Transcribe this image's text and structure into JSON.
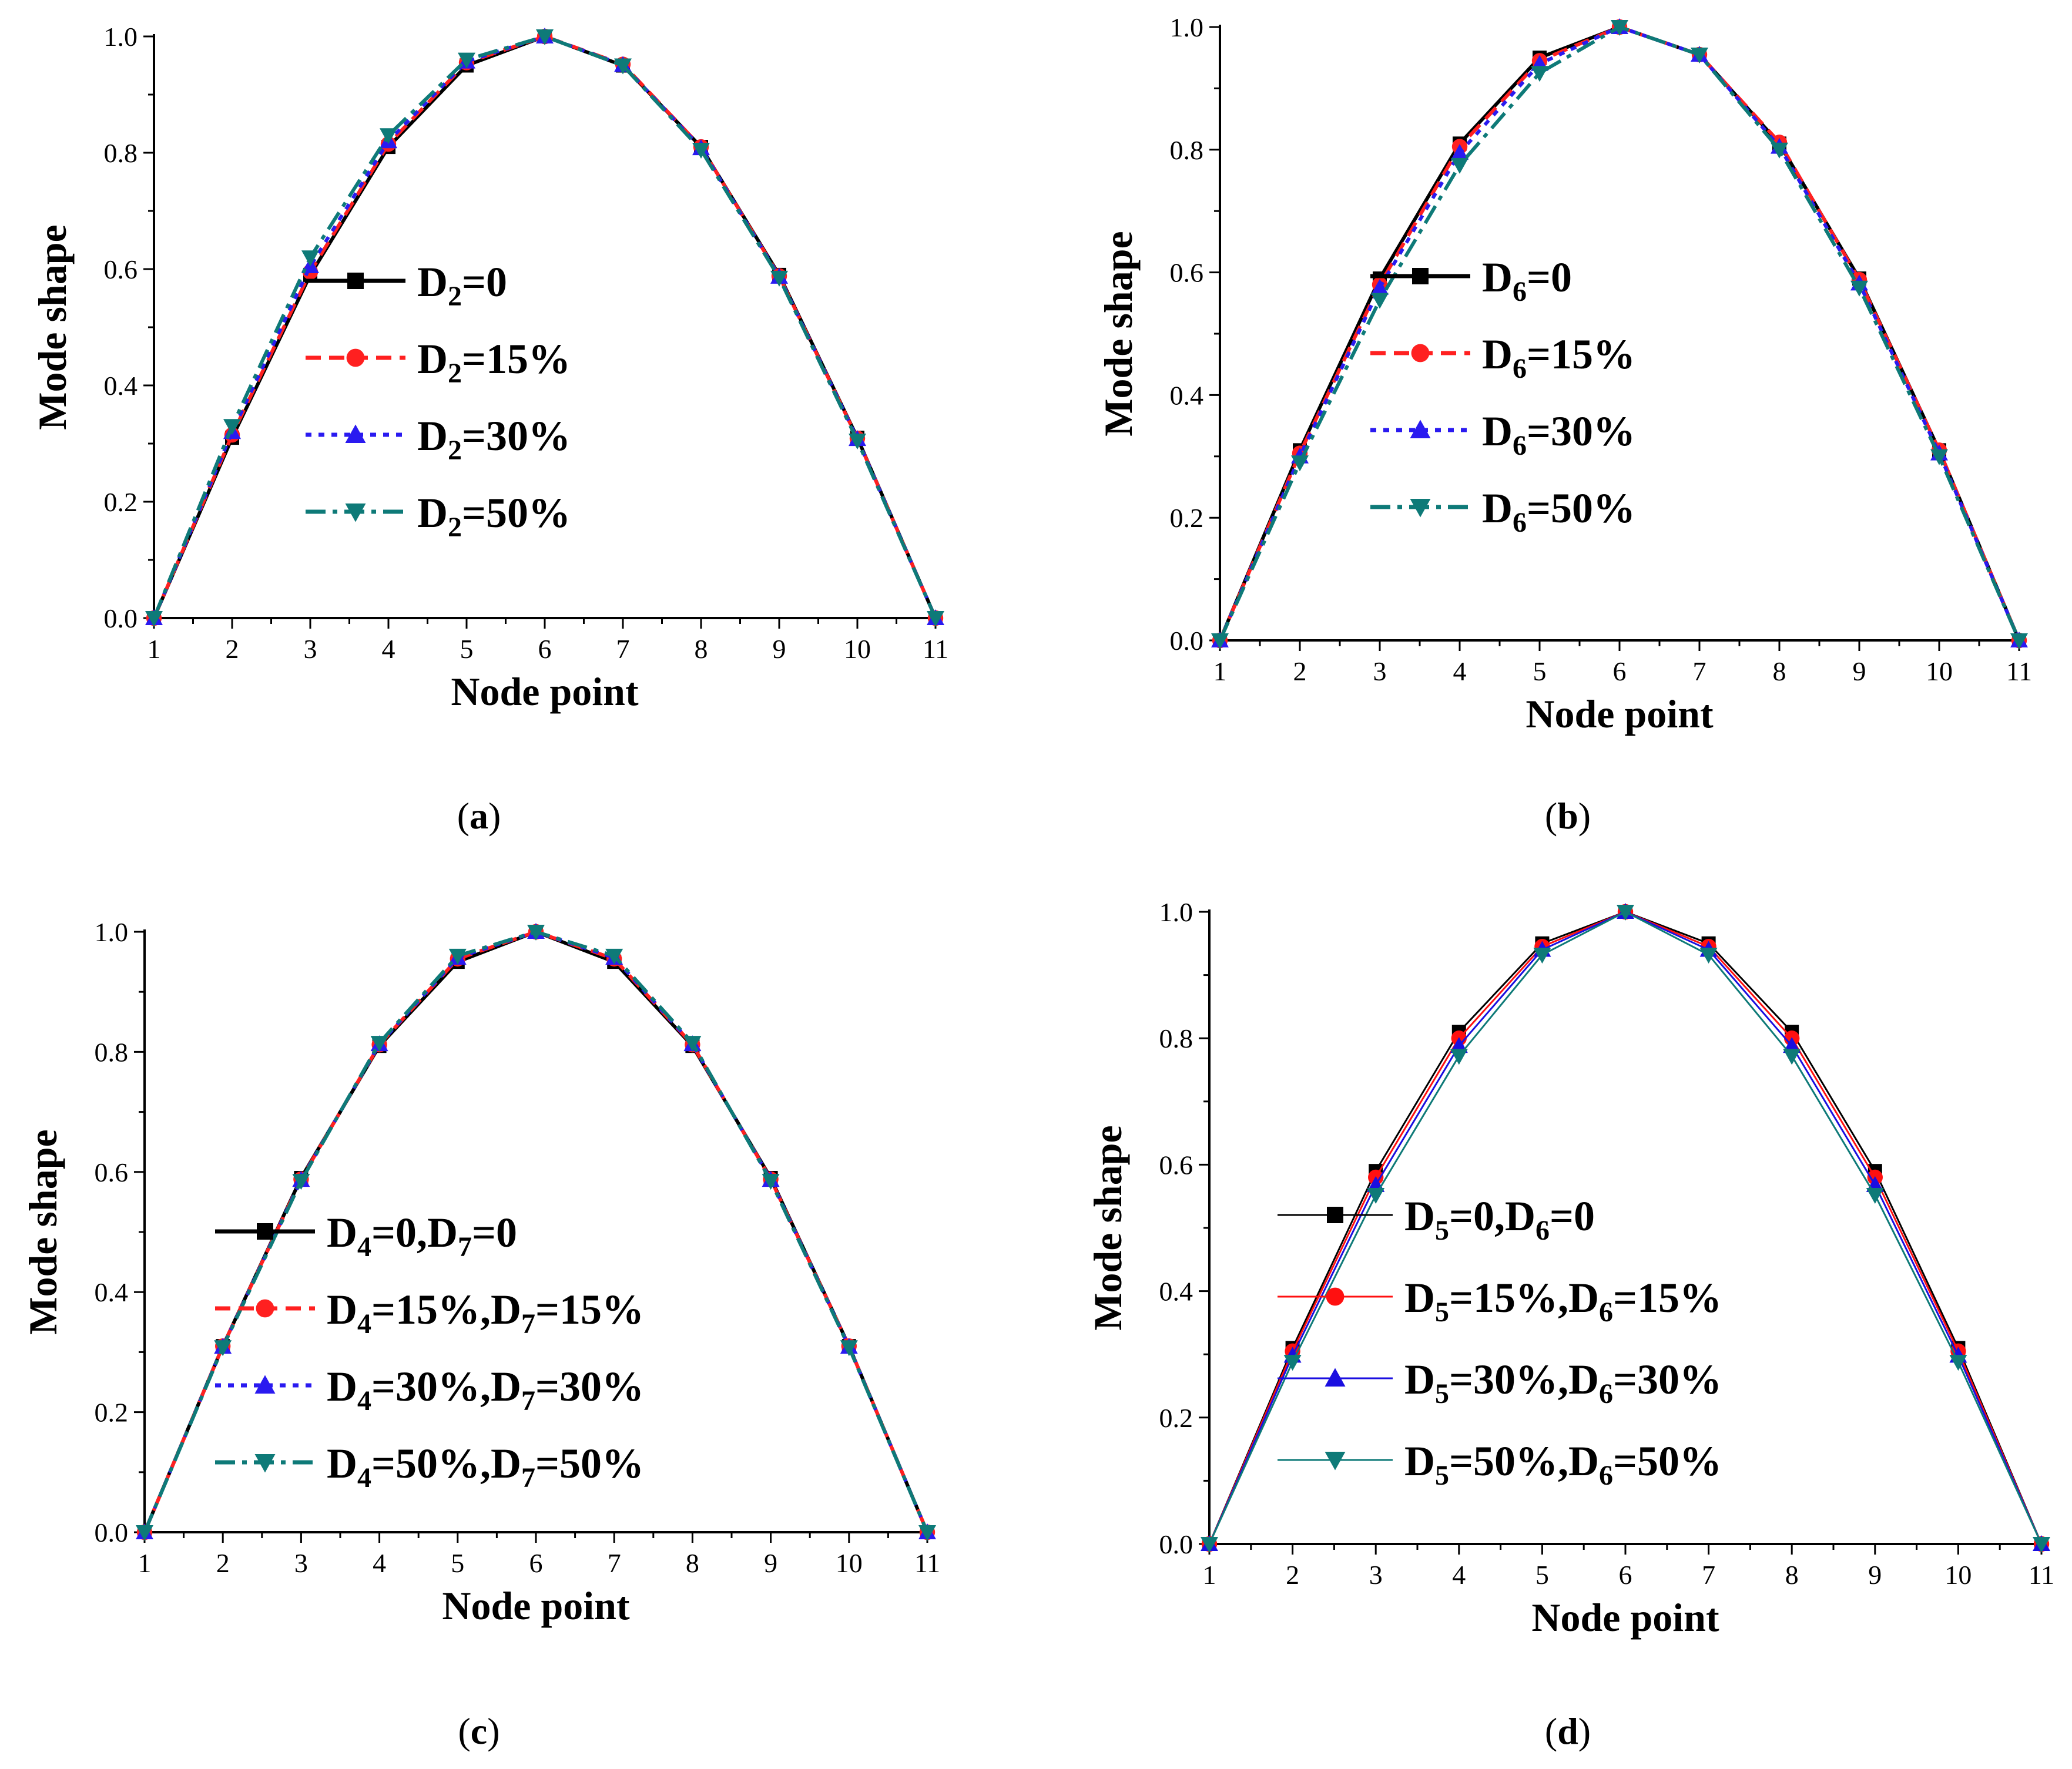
{
  "figure": {
    "panels": [
      {
        "id": "a",
        "caption_letter": "a",
        "legend_style": "dashed",
        "colors": [
          "#000000",
          "#ff2020",
          "#2a1af0",
          "#0e7a78"
        ],
        "legend_labels": [
          [
            {
              "t": "D"
            },
            {
              "t": "2",
              "sub": true
            },
            {
              "t": "=0"
            }
          ],
          [
            {
              "t": "D"
            },
            {
              "t": "2",
              "sub": true
            },
            {
              "t": "=15%"
            }
          ],
          [
            {
              "t": "D"
            },
            {
              "t": "2",
              "sub": true
            },
            {
              "t": "=30%"
            }
          ],
          [
            {
              "t": "D"
            },
            {
              "t": "2",
              "sub": true
            },
            {
              "t": "=50%"
            }
          ]
        ]
      },
      {
        "id": "b",
        "caption_letter": "b",
        "legend_style": "dashed",
        "colors": [
          "#000000",
          "#ff2020",
          "#2a1af0",
          "#0e7a78"
        ],
        "legend_labels": [
          [
            {
              "t": "D"
            },
            {
              "t": "6",
              "sub": true
            },
            {
              "t": "=0"
            }
          ],
          [
            {
              "t": "D"
            },
            {
              "t": "6",
              "sub": true
            },
            {
              "t": "=15%"
            }
          ],
          [
            {
              "t": "D"
            },
            {
              "t": "6",
              "sub": true
            },
            {
              "t": "=30%"
            }
          ],
          [
            {
              "t": "D"
            },
            {
              "t": "6",
              "sub": true
            },
            {
              "t": "=50%"
            }
          ]
        ]
      },
      {
        "id": "c",
        "caption_letter": "c",
        "legend_style": "dashed",
        "colors": [
          "#000000",
          "#ff2020",
          "#2a1af0",
          "#0e7a78"
        ],
        "legend_labels": [
          [
            {
              "t": "D"
            },
            {
              "t": "4",
              "sub": true
            },
            {
              "t": "=0,D"
            },
            {
              "t": "7",
              "sub": true
            },
            {
              "t": "=0"
            }
          ],
          [
            {
              "t": "D"
            },
            {
              "t": "4",
              "sub": true
            },
            {
              "t": "=15%,D"
            },
            {
              "t": "7",
              "sub": true
            },
            {
              "t": "=15%"
            }
          ],
          [
            {
              "t": "D"
            },
            {
              "t": "4",
              "sub": true
            },
            {
              "t": "=30%,D"
            },
            {
              "t": "7",
              "sub": true
            },
            {
              "t": "=30%"
            }
          ],
          [
            {
              "t": "D"
            },
            {
              "t": "4",
              "sub": true
            },
            {
              "t": "=50%,D"
            },
            {
              "t": "7",
              "sub": true
            },
            {
              "t": "=50%"
            }
          ]
        ]
      },
      {
        "id": "d",
        "caption_letter": "d",
        "legend_style": "solid-thin",
        "colors": [
          "#000000",
          "#ff1010",
          "#1a0ee0",
          "#0e7a78"
        ],
        "legend_labels": [
          [
            {
              "t": "D"
            },
            {
              "t": "5",
              "sub": true
            },
            {
              "t": "=0,D"
            },
            {
              "t": "6",
              "sub": true
            },
            {
              "t": "=0"
            }
          ],
          [
            {
              "t": "D"
            },
            {
              "t": "5",
              "sub": true
            },
            {
              "t": "=15%,D"
            },
            {
              "t": "6",
              "sub": true
            },
            {
              "t": "=15%"
            }
          ],
          [
            {
              "t": "D"
            },
            {
              "t": "5",
              "sub": true
            },
            {
              "t": "=30%,D"
            },
            {
              "t": "6",
              "sub": true
            },
            {
              "t": "=30%"
            }
          ],
          [
            {
              "t": "D"
            },
            {
              "t": "5",
              "sub": true
            },
            {
              "t": "=50%,D"
            },
            {
              "t": "6",
              "sub": true
            },
            {
              "t": "=50%"
            }
          ]
        ]
      }
    ]
  },
  "chart_data": [
    {
      "type": "line",
      "panel": "a",
      "title": "",
      "xlabel": "Node point",
      "ylabel": "Mode shape",
      "x": [
        1,
        2,
        3,
        4,
        5,
        6,
        7,
        8,
        9,
        10,
        11
      ],
      "xlim": [
        1,
        11
      ],
      "ylim": [
        0,
        1.0
      ],
      "xticks": [
        "1",
        "2",
        "3",
        "4",
        "5",
        "6",
        "7",
        "8",
        "9",
        "10",
        "11"
      ],
      "yticks": [
        "0.0",
        "0.2",
        "0.4",
        "0.6",
        "0.8",
        "1.0"
      ],
      "series": [
        {
          "name": "D2=0",
          "marker": "square",
          "values": [
            0,
            0.31,
            0.59,
            0.81,
            0.95,
            1.0,
            0.95,
            0.81,
            0.59,
            0.31,
            0
          ]
        },
        {
          "name": "D2=15%",
          "marker": "circle",
          "values": [
            0,
            0.315,
            0.595,
            0.815,
            0.955,
            1.0,
            0.952,
            0.81,
            0.588,
            0.309,
            0
          ]
        },
        {
          "name": "D2=30%",
          "marker": "triangle-up",
          "values": [
            0,
            0.32,
            0.605,
            0.82,
            0.957,
            1.0,
            0.951,
            0.808,
            0.587,
            0.308,
            0
          ]
        },
        {
          "name": "D2=50%",
          "marker": "triangle-down",
          "values": [
            0,
            0.33,
            0.62,
            0.83,
            0.96,
            1.0,
            0.95,
            0.805,
            0.585,
            0.305,
            0
          ]
        }
      ]
    },
    {
      "type": "line",
      "panel": "b",
      "title": "",
      "xlabel": "Node point",
      "ylabel": "Mode shape",
      "x": [
        1,
        2,
        3,
        4,
        5,
        6,
        7,
        8,
        9,
        10,
        11
      ],
      "xlim": [
        1,
        11
      ],
      "ylim": [
        0,
        1.0
      ],
      "xticks": [
        "1",
        "2",
        "3",
        "4",
        "5",
        "6",
        "7",
        "8",
        "9",
        "10",
        "11"
      ],
      "yticks": [
        "0.0",
        "0.2",
        "0.4",
        "0.6",
        "0.8",
        "1.0"
      ],
      "series": [
        {
          "name": "D6=0",
          "marker": "square",
          "values": [
            0,
            0.31,
            0.59,
            0.81,
            0.95,
            1.0,
            0.955,
            0.81,
            0.59,
            0.31,
            0
          ]
        },
        {
          "name": "D6=15%",
          "marker": "circle",
          "values": [
            0,
            0.305,
            0.58,
            0.805,
            0.945,
            1.0,
            0.955,
            0.812,
            0.588,
            0.31,
            0
          ]
        },
        {
          "name": "D6=30%",
          "marker": "triangle-up",
          "values": [
            0,
            0.3,
            0.575,
            0.795,
            0.94,
            1.0,
            0.955,
            0.805,
            0.582,
            0.305,
            0
          ]
        },
        {
          "name": "D6=50%",
          "marker": "triangle-down",
          "values": [
            0,
            0.29,
            0.555,
            0.775,
            0.925,
            1.0,
            0.955,
            0.8,
            0.575,
            0.3,
            0
          ]
        }
      ]
    },
    {
      "type": "line",
      "panel": "c",
      "title": "",
      "xlabel": "Node point",
      "ylabel": "Mode shape",
      "x": [
        1,
        2,
        3,
        4,
        5,
        6,
        7,
        8,
        9,
        10,
        11
      ],
      "xlim": [
        1,
        11
      ],
      "ylim": [
        0,
        1.0
      ],
      "xticks": [
        "1",
        "2",
        "3",
        "4",
        "5",
        "6",
        "7",
        "8",
        "9",
        "10",
        "11"
      ],
      "yticks": [
        "0.0",
        "0.2",
        "0.4",
        "0.6",
        "0.8",
        "1.0"
      ],
      "series": [
        {
          "name": "D4=0,D7=0",
          "marker": "square",
          "values": [
            0,
            0.31,
            0.59,
            0.81,
            0.95,
            1.0,
            0.95,
            0.81,
            0.59,
            0.31,
            0
          ]
        },
        {
          "name": "D4=15%,D7=15%",
          "marker": "circle",
          "values": [
            0,
            0.31,
            0.588,
            0.812,
            0.955,
            1.0,
            0.955,
            0.812,
            0.588,
            0.31,
            0
          ]
        },
        {
          "name": "D4=30%,D7=30%",
          "marker": "triangle-up",
          "values": [
            0,
            0.309,
            0.587,
            0.813,
            0.957,
            1.0,
            0.957,
            0.813,
            0.587,
            0.309,
            0
          ]
        },
        {
          "name": "D4=50%,D7=50%",
          "marker": "triangle-down",
          "values": [
            0,
            0.308,
            0.585,
            0.815,
            0.96,
            1.0,
            0.96,
            0.815,
            0.585,
            0.308,
            0
          ]
        }
      ]
    },
    {
      "type": "line",
      "panel": "d",
      "title": "",
      "xlabel": "Node point",
      "ylabel": "Mode shape",
      "x": [
        1,
        2,
        3,
        4,
        5,
        6,
        7,
        8,
        9,
        10,
        11
      ],
      "xlim": [
        1,
        11
      ],
      "ylim": [
        0,
        1.0
      ],
      "xticks": [
        "1",
        "2",
        "3",
        "4",
        "5",
        "6",
        "7",
        "8",
        "9",
        "10",
        "11"
      ],
      "yticks": [
        "0.0",
        "0.2",
        "0.4",
        "0.6",
        "0.8",
        "1.0"
      ],
      "series": [
        {
          "name": "D5=0,D6=0",
          "marker": "square",
          "values": [
            0,
            0.31,
            0.59,
            0.81,
            0.95,
            1.0,
            0.95,
            0.81,
            0.59,
            0.31,
            0
          ]
        },
        {
          "name": "D5=15%,D6=15%",
          "marker": "circle",
          "values": [
            0,
            0.305,
            0.58,
            0.8,
            0.945,
            1.0,
            0.945,
            0.8,
            0.58,
            0.305,
            0
          ]
        },
        {
          "name": "D5=30%,D6=30%",
          "marker": "triangle-up",
          "values": [
            0,
            0.298,
            0.568,
            0.788,
            0.94,
            1.0,
            0.94,
            0.788,
            0.568,
            0.298,
            0
          ]
        },
        {
          "name": "D5=50%,D6=50%",
          "marker": "triangle-down",
          "values": [
            0,
            0.288,
            0.552,
            0.772,
            0.932,
            1.0,
            0.932,
            0.772,
            0.552,
            0.288,
            0
          ]
        }
      ]
    }
  ]
}
